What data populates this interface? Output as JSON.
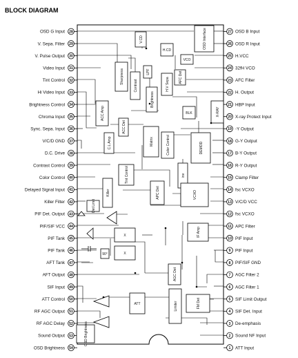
{
  "title": "BLOCK DIAGRAM",
  "left_pins": [
    {
      "num": "28",
      "label": "OSD G Input"
    },
    {
      "num": "29",
      "label": "V. Sepa. Filter"
    },
    {
      "num": "30",
      "label": "V. Pulse Output"
    },
    {
      "num": "31",
      "label": "Video Input"
    },
    {
      "num": "32",
      "label": "Tint Control"
    },
    {
      "num": "33",
      "label": "Hi Video Input"
    },
    {
      "num": "34",
      "label": "Brightness Control"
    },
    {
      "num": "35",
      "label": "Chroma Input"
    },
    {
      "num": "36",
      "label": "Sync. Sepa. Input"
    },
    {
      "num": "37",
      "label": "V/C/D GND"
    },
    {
      "num": "38",
      "label": "D.C. Drive"
    },
    {
      "num": "39",
      "label": "Contrast Control"
    },
    {
      "num": "40",
      "label": "Color Control"
    },
    {
      "num": "41",
      "label": "Delayed Signal Input"
    },
    {
      "num": "42",
      "label": "Killer Filter"
    },
    {
      "num": "43",
      "label": "PIF Det. Output"
    },
    {
      "num": "44",
      "label": "PIF/SIF VCC"
    },
    {
      "num": "45",
      "label": "PIF Tank"
    },
    {
      "num": "46",
      "label": "PIF Tank"
    },
    {
      "num": "47",
      "label": "AFT Tank"
    },
    {
      "num": "48",
      "label": "AFT Output"
    },
    {
      "num": "49",
      "label": "SIF Input"
    },
    {
      "num": "50",
      "label": "ATT Control"
    },
    {
      "num": "51",
      "label": "RF AGC Output"
    },
    {
      "num": "52",
      "label": "RF AGC Delay"
    },
    {
      "num": "53",
      "label": "Sound Output"
    },
    {
      "num": "54",
      "label": "OSD Brightness"
    }
  ],
  "right_pins": [
    {
      "num": "27",
      "label": "OSD B Input"
    },
    {
      "num": "26",
      "label": "OSD R Input"
    },
    {
      "num": "25",
      "label": "H.VCC"
    },
    {
      "num": "24",
      "label": "32fH VCO"
    },
    {
      "num": "23",
      "label": "AFC Filter"
    },
    {
      "num": "22",
      "label": "H. Output"
    },
    {
      "num": "21",
      "label": "HBP Input"
    },
    {
      "num": "20",
      "label": "X-ray Protect Input"
    },
    {
      "num": "19",
      "label": "-Y Output"
    },
    {
      "num": "18",
      "label": "G-Y Output"
    },
    {
      "num": "17",
      "label": "B-Y Output"
    },
    {
      "num": "16",
      "label": "R-Y Output"
    },
    {
      "num": "15",
      "label": "Clamp Filter"
    },
    {
      "num": "14",
      "label": "fsc VCXO"
    },
    {
      "num": "13",
      "label": "V/C/D VCC"
    },
    {
      "num": "12",
      "label": "fsc VCXO"
    },
    {
      "num": "11",
      "label": "APC Filter"
    },
    {
      "num": "10",
      "label": "PIF Input"
    },
    {
      "num": "9",
      "label": "PIF Input"
    },
    {
      "num": "8",
      "label": "PIF/SIF GND"
    },
    {
      "num": "7",
      "label": "AGC Filter 2"
    },
    {
      "num": "6",
      "label": "AGC Filter 1"
    },
    {
      "num": "5",
      "label": "SIF Limit Output"
    },
    {
      "num": "4",
      "label": "SIF Det. Input"
    },
    {
      "num": "3",
      "label": "De-emphasis"
    },
    {
      "num": "2",
      "label": "Sound NF Input"
    },
    {
      "num": "1",
      "label": "ATT Input"
    }
  ],
  "blocks": {
    "osd_interface": "OSD Interface",
    "v_cd": "V.CD",
    "h_cd": "H.CD",
    "vco": "VCO",
    "lpf": "LPF",
    "sharpness": "Sharpness",
    "contrast": "Contrast",
    "brightness": "Brightness",
    "hv_sepa": "H.V Sepa",
    "afc_det": "AFC Det",
    "blk": "BLK",
    "x_ray": "X-RAY",
    "acc_amp": "ACC Amp",
    "acc_det": "ACC Det",
    "cl_amp": "C.L Amp",
    "matrix": "Matrix",
    "color_control": "Color Control",
    "demod": "DEMOD",
    "inv": "inv",
    "tint_control": "Tint Control",
    "killer": "Killer",
    "apc_det": "APC Det",
    "vcxo": "VCXO",
    "det_limit": "Det Limit",
    "if_amp": "IF Amp",
    "phase_90": "90°",
    "mult": "X",
    "agc_det": "AGC Det",
    "att": "ATT",
    "limiter": "Limiter",
    "fm_det": "FM Det",
    "osd_brightness": "OSD Brightness"
  }
}
